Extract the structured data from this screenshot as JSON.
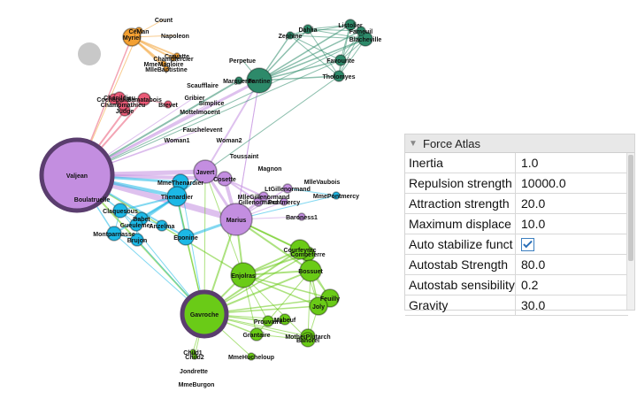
{
  "graph": {
    "node_colors": {
      "purple": "#c38ee0",
      "blue": "#1cb8e6",
      "green": "#6acb17",
      "teal": "#2d8a6a",
      "orange": "#f3a032",
      "red": "#ea5a77",
      "gray": "#c8c8c8"
    },
    "labels": [
      "Count",
      "CeMan",
      "Napoleon",
      "Myriel",
      "Cravatte",
      "Champtercier",
      "MmeMagloire",
      "MlleBaptistine",
      "Perpetue",
      "Marguerite",
      "Fantine",
      "Zephine",
      "Dahlia",
      "Listolier",
      "Tholomyes",
      "Blacheville",
      "Favourite",
      "Fameuil",
      "Scaufflaire",
      "Gribier",
      "Simplice",
      "Mottelmocent",
      "Judge",
      "Bamatabois",
      "Champmathieu",
      "Cochepaille",
      "Chenildieu",
      "Brevet",
      "Fauchelevent",
      "Woman1",
      "Woman2",
      "Toussaint",
      "Valjean",
      "Boulatruelle",
      "MmeThenardier",
      "Thenardier",
      "Javert",
      "Cosette",
      "Magnon",
      "MlleVaubois",
      "Gillenormand",
      "MlleGillenormand",
      "LtGillenormand",
      "Pontmercy",
      "MmePontmercy",
      "Baroness1",
      "Claquesous",
      "Babet",
      "Gueulemer",
      "Montparnasse",
      "Brujon",
      "Eponine",
      "Marius",
      "Anzelma",
      "Combeferre",
      "Courfeyrac",
      "Bossuet",
      "Enjolras",
      "Feuilly",
      "Joly",
      "Gavroche",
      "Prouvaire",
      "Mabeuf",
      "Grantaire",
      "MotherPlutarch",
      "Bahorel",
      "MmeHucheloup",
      "Child1",
      "Child2",
      "Jondrette",
      "MmeBurgon"
    ]
  },
  "panel": {
    "title": "Force Atlas",
    "rows": [
      {
        "key": "Inertia",
        "value": "1.0"
      },
      {
        "key": "Repulsion strength",
        "value": "10000.0"
      },
      {
        "key": "Attraction strength",
        "value": "20.0"
      },
      {
        "key": "Maximum displace",
        "value": "10.0"
      },
      {
        "key": "Auto stabilize funct",
        "value": "",
        "checked": true
      },
      {
        "key": "Autostab Strength",
        "value": "80.0"
      },
      {
        "key": "Autostab sensibility",
        "value": "0.2"
      },
      {
        "key": "Gravity",
        "value": "30.0"
      }
    ]
  }
}
